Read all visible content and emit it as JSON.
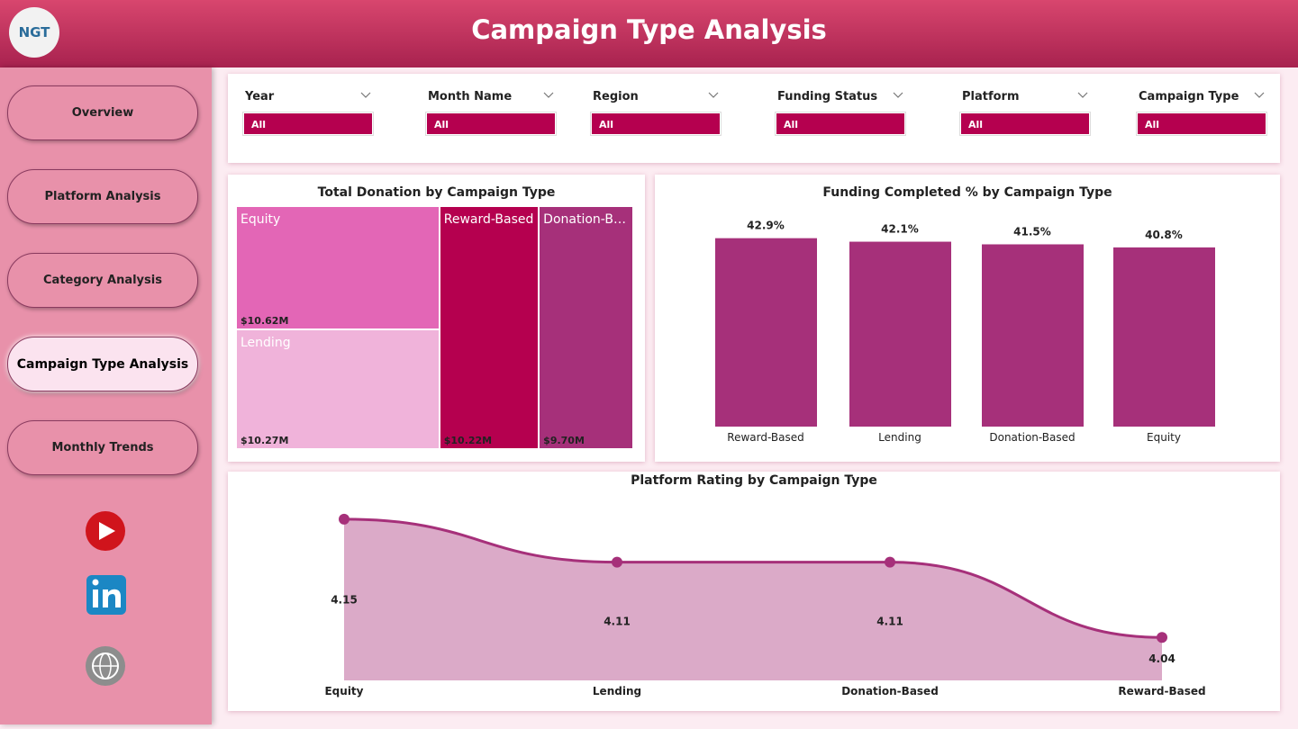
{
  "header": {
    "title": "Campaign Type Analysis",
    "logo": "NGT"
  },
  "nav": [
    "Overview",
    "Platform Analysis",
    "Category Analysis",
    "Campaign Type Analysis",
    "Monthly Trends"
  ],
  "filters": [
    {
      "label": "Year",
      "value": "All"
    },
    {
      "label": "Month Name",
      "value": "All"
    },
    {
      "label": "Region",
      "value": "All"
    },
    {
      "label": "Funding Status",
      "value": "All"
    },
    {
      "label": "Platform",
      "value": "All"
    },
    {
      "label": "Campaign Type",
      "value": "All"
    }
  ],
  "chart_data": [
    {
      "type": "treemap",
      "title": "Total Donation by Campaign Type",
      "categories": [
        "Equity",
        "Lending",
        "Reward-Based",
        "Donation-Based"
      ],
      "values": [
        10.62,
        10.27,
        10.22,
        9.7
      ],
      "value_labels": [
        "$10.62M",
        "$10.27M",
        "$10.22M",
        "$9.70M"
      ],
      "colors": [
        "#e366b6",
        "#f0b3da",
        "#b5004f",
        "#a6307a"
      ]
    },
    {
      "type": "bar",
      "title": "Funding Completed % by Campaign Type",
      "categories": [
        "Reward-Based",
        "Lending",
        "Donation-Based",
        "Equity"
      ],
      "values": [
        42.9,
        42.1,
        41.5,
        40.8
      ],
      "value_labels": [
        "42.9%",
        "42.1%",
        "41.5%",
        "40.8%"
      ],
      "color": "#a6307a",
      "ylim": [
        0,
        50
      ]
    },
    {
      "type": "area",
      "title": "Platform Rating by Campaign Type",
      "categories": [
        "Equity",
        "Lending",
        "Donation-Based",
        "Reward-Based"
      ],
      "values": [
        4.15,
        4.11,
        4.11,
        4.04
      ],
      "color": "#a6307a",
      "fill": "#dbaac8",
      "ylim": [
        4,
        4.17
      ]
    }
  ]
}
